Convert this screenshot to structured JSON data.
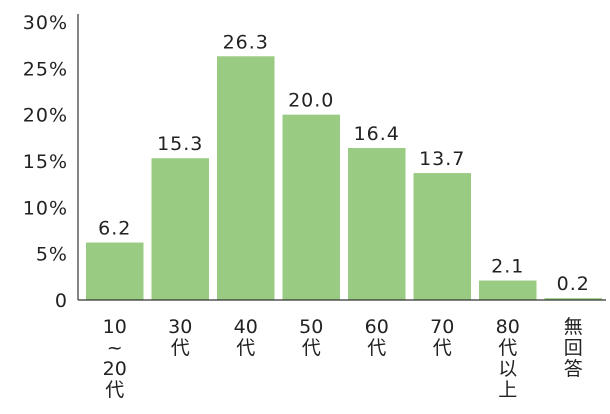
{
  "chart_data": {
    "type": "bar",
    "title": "",
    "xlabel": "",
    "ylabel": "",
    "categories": [
      "10~20代",
      "30代",
      "40代",
      "50代",
      "60代",
      "70代",
      "80代以上",
      "無回答"
    ],
    "category_lines": [
      [
        "10",
        "~",
        "20",
        "代"
      ],
      [
        "30",
        "代"
      ],
      [
        "40",
        "代"
      ],
      [
        "50",
        "代"
      ],
      [
        "60",
        "代"
      ],
      [
        "70",
        "代"
      ],
      [
        "80",
        "代",
        "以",
        "上"
      ],
      [
        "無",
        "回",
        "答"
      ]
    ],
    "values": [
      6.2,
      15.3,
      26.3,
      20.0,
      16.4,
      13.7,
      2.1,
      0.2
    ],
    "value_labels": [
      "6.2",
      "15.3",
      "26.3",
      "20.0",
      "16.4",
      "13.7",
      "2.1",
      "0.2"
    ],
    "ylim": [
      0,
      30
    ],
    "yticks": [
      0,
      5,
      10,
      15,
      20,
      25,
      30
    ],
    "ytick_labels": [
      "0",
      "5%",
      "10%",
      "15%",
      "20%",
      "25%",
      "30%"
    ],
    "grid": false,
    "legend": "none",
    "bar_color": "#99cc82",
    "axis_color": "#333333"
  }
}
